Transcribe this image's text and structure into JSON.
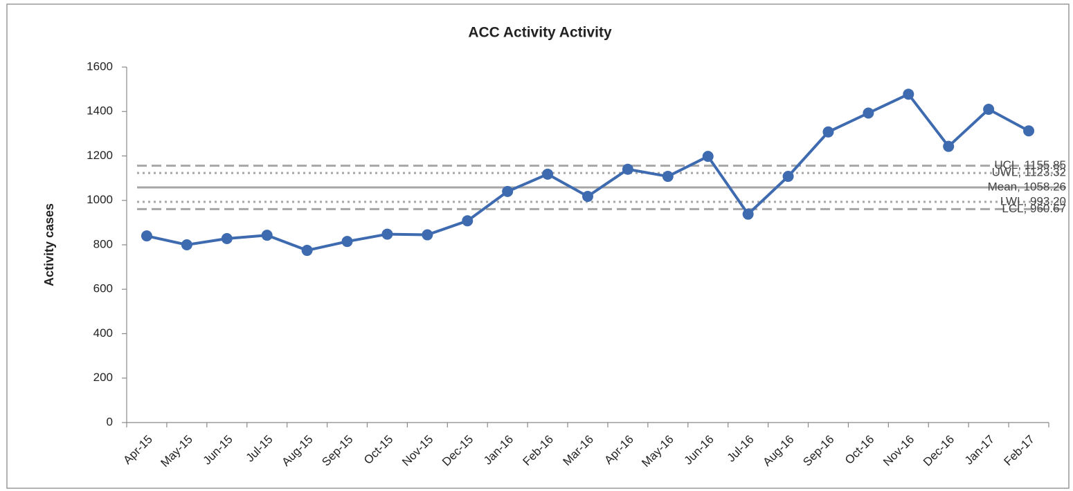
{
  "chart_data": {
    "type": "line",
    "title": "ACC Activity Activity",
    "y_label": "Activity cases",
    "categories": [
      "Apr-15",
      "May-15",
      "Jun-15",
      "Jul-15",
      "Aug-15",
      "Sep-15",
      "Oct-15",
      "Nov-15",
      "Dec-15",
      "Jan-16",
      "Feb-16",
      "Mar-16",
      "Apr-16",
      "May-16",
      "Jun-16",
      "Jul-16",
      "Aug-16",
      "Sep-16",
      "Oct-16",
      "Nov-16",
      "Dec-16",
      "Jan-17",
      "Feb-17"
    ],
    "series": [
      {
        "name": "Activity cases",
        "color": "#3e6bb0",
        "values": [
          840,
          800,
          828,
          843,
          775,
          815,
          848,
          845,
          908,
          1040,
          1118,
          1018,
          1140,
          1108,
          1198,
          938,
          1108,
          1308,
          1393,
          1478,
          1243,
          1410,
          1313
        ]
      }
    ],
    "reference_lines": [
      {
        "value": 1155.85,
        "label": "UCL, 1155.85",
        "style": "dashed",
        "color": "#a6a6a6"
      },
      {
        "value": 1123.32,
        "label": "UWL, 1123.32",
        "style": "dotted",
        "color": "#a6a6a6"
      },
      {
        "value": 1058.26,
        "label": "Mean, 1058.26",
        "style": "solid",
        "color": "#a6a6a6"
      },
      {
        "value": 993.2,
        "label": "LWL, 993.20",
        "style": "dotted",
        "color": "#a6a6a6"
      },
      {
        "value": 960.67,
        "label": "LCL, 960.67",
        "style": "dashed",
        "color": "#a6a6a6"
      }
    ],
    "ylim": [
      0,
      1600
    ],
    "yticks": [
      0,
      200,
      400,
      600,
      800,
      1000,
      1200,
      1400,
      1600
    ],
    "grid": false
  }
}
